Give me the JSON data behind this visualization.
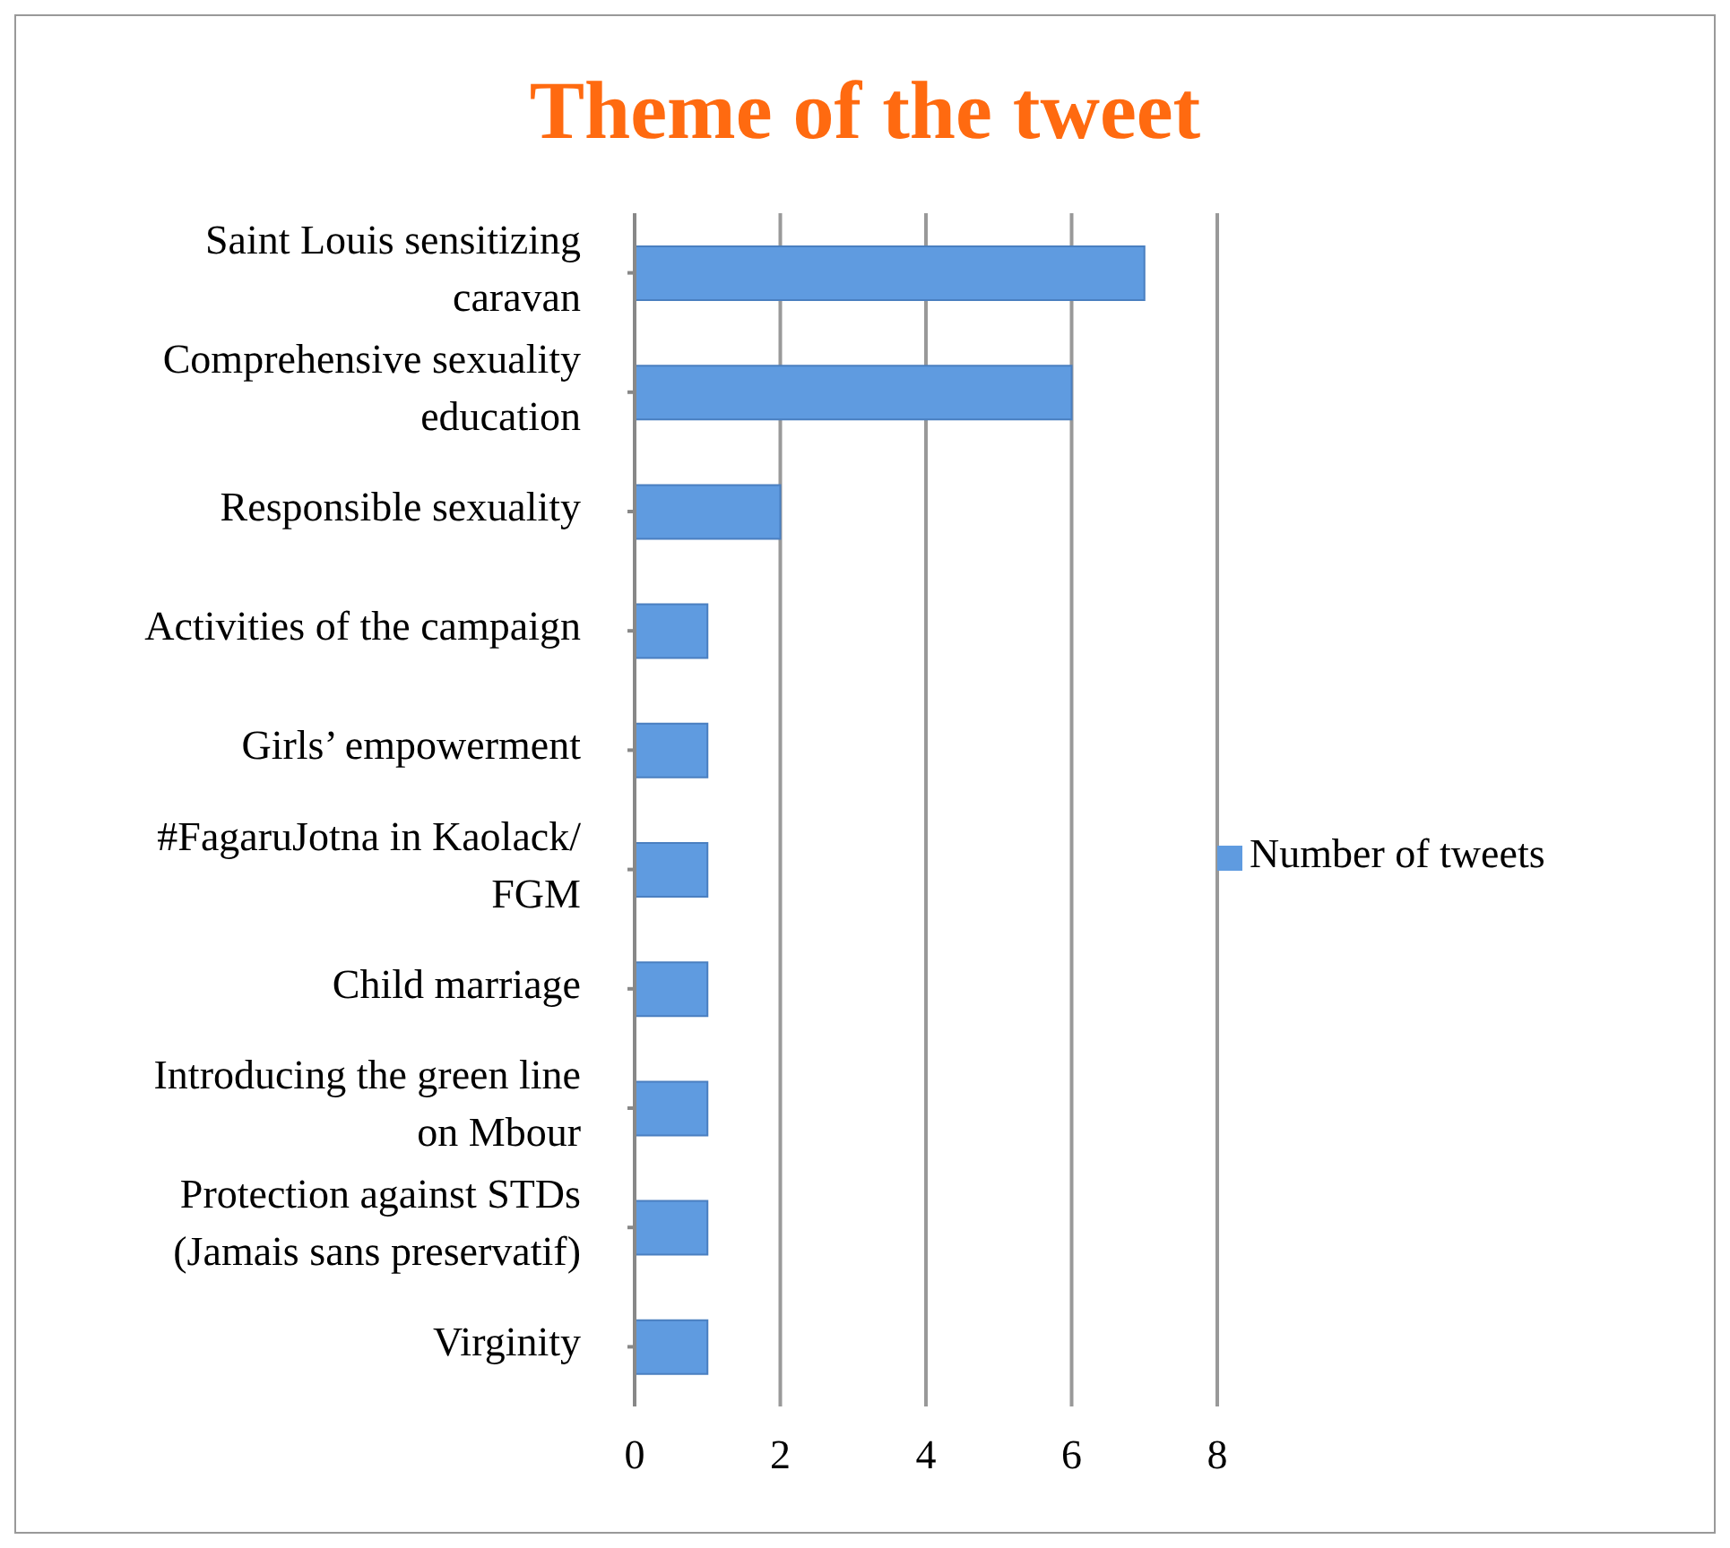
{
  "chart_data": {
    "type": "bar",
    "orientation": "horizontal",
    "title": "Theme of the tweet",
    "categories": [
      "Saint Louis sensitizing caravan",
      "Comprehensive sexuality education",
      "Responsible sexuality",
      "Activities of the campaign",
      "Girls’ empowerment",
      "#FagaruJotna in Kaolack/ FGM",
      "Child marriage",
      "Introducing the green line on Mbour",
      "Protection against STDs (Jamais sans preservatif)",
      "Virginity"
    ],
    "series": [
      {
        "name": "Number of tweets",
        "color": "#5f9be0",
        "values": [
          7,
          6,
          2,
          1,
          1,
          1,
          1,
          1,
          1,
          1
        ]
      }
    ],
    "xlim": [
      0,
      8
    ],
    "xticks": [
      0,
      2,
      4,
      6,
      8
    ],
    "grid": "x",
    "legend": "right"
  }
}
